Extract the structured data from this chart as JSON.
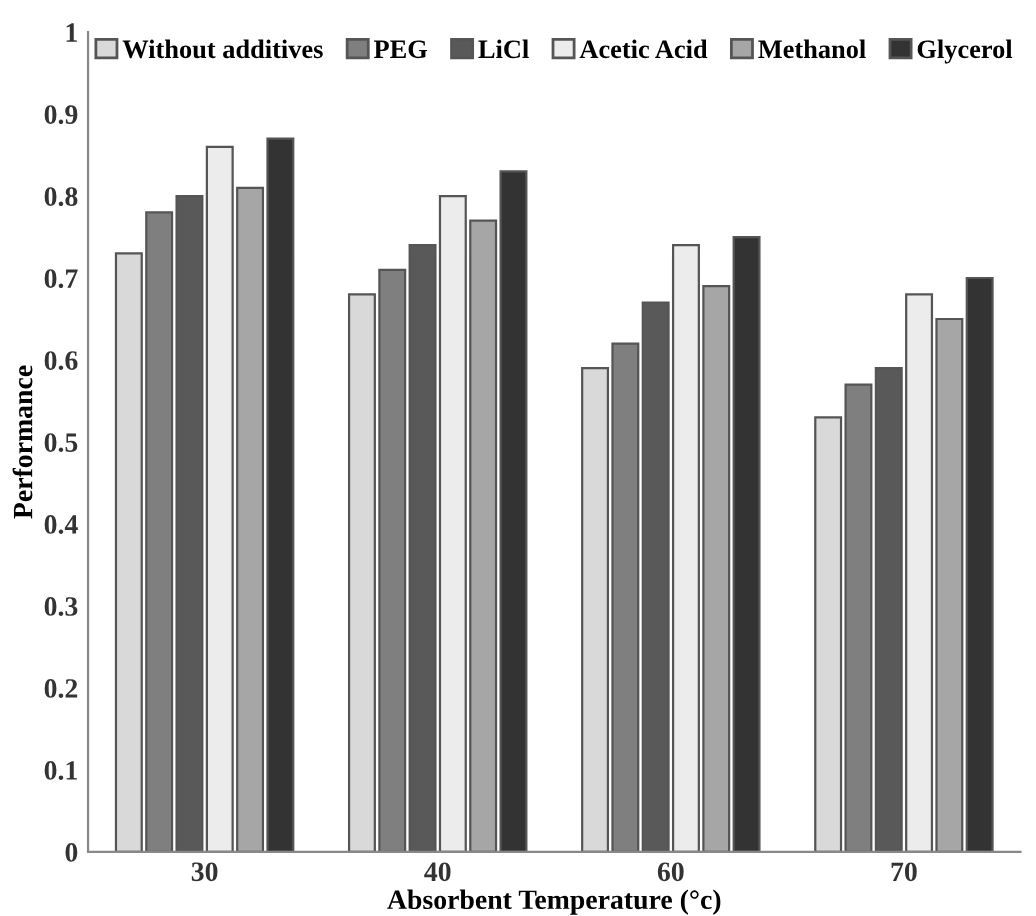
{
  "chart_data": {
    "type": "bar",
    "xlabel": "Absorbent Temperature (°c)",
    "ylabel": "Performance",
    "categories": [
      "30",
      "40",
      "60",
      "70"
    ],
    "series": [
      {
        "name": "Without additives",
        "color": "#d9d9d9",
        "values": [
          0.73,
          0.68,
          0.59,
          0.53
        ]
      },
      {
        "name": "PEG",
        "color": "#7f7f7f",
        "values": [
          0.78,
          0.71,
          0.62,
          0.57
        ]
      },
      {
        "name": "LiCl",
        "color": "#595959",
        "values": [
          0.8,
          0.74,
          0.67,
          0.59
        ]
      },
      {
        "name": "Acetic Acid",
        "color": "#ececec",
        "values": [
          0.86,
          0.8,
          0.74,
          0.68
        ]
      },
      {
        "name": "Methanol",
        "color": "#a6a6a6",
        "values": [
          0.81,
          0.77,
          0.69,
          0.65
        ]
      },
      {
        "name": "Glycerol",
        "color": "#333333",
        "values": [
          0.87,
          0.83,
          0.75,
          0.7
        ]
      }
    ],
    "ylim": [
      0,
      1
    ],
    "yticks": [
      0,
      0.1,
      0.2,
      0.3,
      0.4,
      0.5,
      0.6,
      0.7,
      0.8,
      0.9,
      1
    ],
    "grid": false,
    "legend": "top"
  }
}
